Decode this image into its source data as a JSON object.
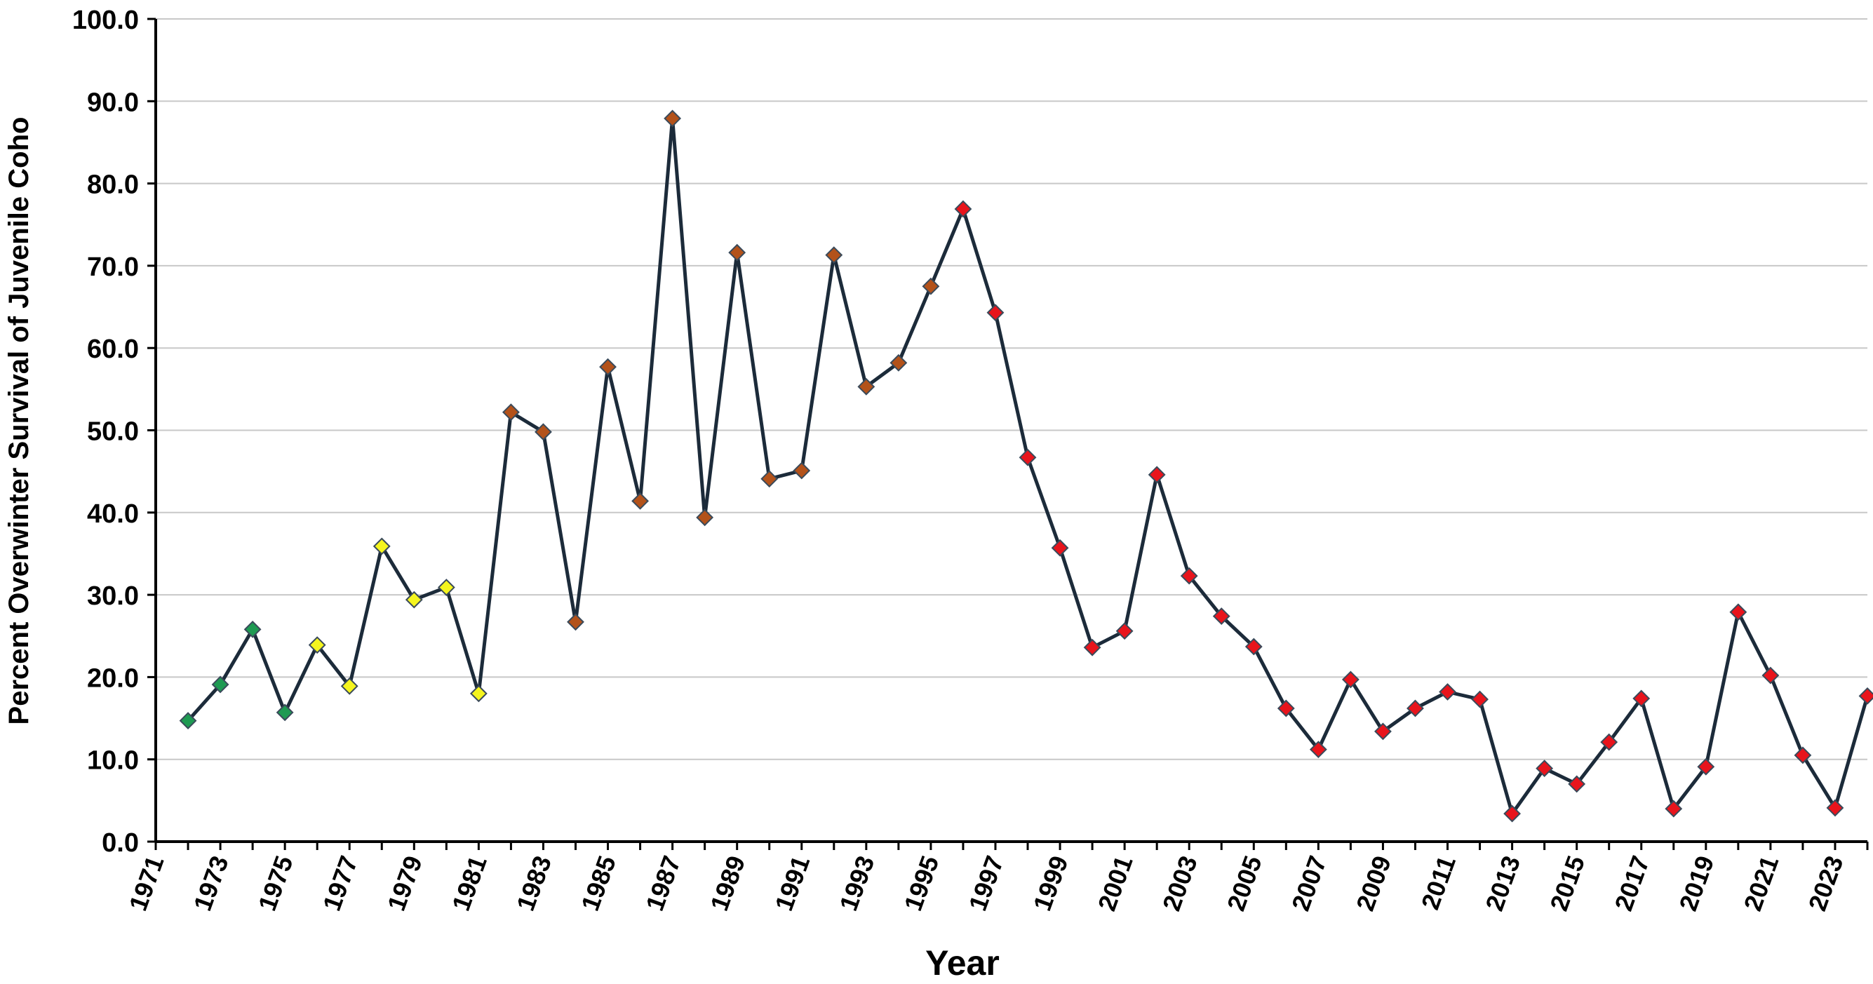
{
  "chart_data": {
    "type": "line",
    "title": "",
    "xlabel": "Year",
    "ylabel": "Percent Overwinter Survival of Juvenile Coho",
    "ylim": [
      0,
      100
    ],
    "xlim": [
      1971,
      2024
    ],
    "y_ticks": [
      "0.0",
      "10.0",
      "20.0",
      "30.0",
      "40.0",
      "50.0",
      "60.0",
      "70.0",
      "80.0",
      "90.0",
      "100.0"
    ],
    "x_ticks": [
      "1971",
      "1973",
      "1975",
      "1977",
      "1979",
      "1981",
      "1983",
      "1985",
      "1987",
      "1989",
      "1991",
      "1993",
      "1995",
      "1997",
      "1999",
      "2001",
      "2003",
      "2005",
      "2007",
      "2009",
      "2011",
      "2013",
      "2015",
      "2017",
      "2019",
      "2021",
      "2023"
    ],
    "grid": "horizontal",
    "line_color": "#1c2b3a",
    "marker": "diamond",
    "marker_colors": {
      "green": "#1e9a52",
      "yellow": "#f5f51e",
      "brown": "#b3521a",
      "red": "#e8141c"
    },
    "series": [
      {
        "points": [
          {
            "x": 1972,
            "y": 14.7,
            "color": "green"
          },
          {
            "x": 1973,
            "y": 19.1,
            "color": "green"
          },
          {
            "x": 1974,
            "y": 25.8,
            "color": "green"
          },
          {
            "x": 1975,
            "y": 15.7,
            "color": "green"
          },
          {
            "x": 1976,
            "y": 23.9,
            "color": "yellow"
          },
          {
            "x": 1977,
            "y": 18.9,
            "color": "yellow"
          },
          {
            "x": 1978,
            "y": 35.9,
            "color": "yellow"
          },
          {
            "x": 1979,
            "y": 29.4,
            "color": "yellow"
          },
          {
            "x": 1980,
            "y": 30.9,
            "color": "yellow"
          },
          {
            "x": 1981,
            "y": 18.0,
            "color": "yellow"
          },
          {
            "x": 1982,
            "y": 52.2,
            "color": "brown"
          },
          {
            "x": 1983,
            "y": 49.8,
            "color": "brown"
          },
          {
            "x": 1984,
            "y": 26.7,
            "color": "brown"
          },
          {
            "x": 1985,
            "y": 57.7,
            "color": "brown"
          },
          {
            "x": 1986,
            "y": 41.4,
            "color": "brown"
          },
          {
            "x": 1987,
            "y": 87.9,
            "color": "brown"
          },
          {
            "x": 1988,
            "y": 39.4,
            "color": "brown"
          },
          {
            "x": 1989,
            "y": 71.6,
            "color": "brown"
          },
          {
            "x": 1990,
            "y": 44.1,
            "color": "brown"
          },
          {
            "x": 1991,
            "y": 45.1,
            "color": "brown"
          },
          {
            "x": 1992,
            "y": 71.3,
            "color": "brown"
          },
          {
            "x": 1993,
            "y": 55.3,
            "color": "brown"
          },
          {
            "x": 1994,
            "y": 58.2,
            "color": "brown"
          },
          {
            "x": 1995,
            "y": 67.5,
            "color": "brown"
          },
          {
            "x": 1996,
            "y": 76.9,
            "color": "red"
          },
          {
            "x": 1997,
            "y": 64.3,
            "color": "red"
          },
          {
            "x": 1998,
            "y": 46.7,
            "color": "red"
          },
          {
            "x": 1999,
            "y": 35.7,
            "color": "red"
          },
          {
            "x": 2000,
            "y": 23.6,
            "color": "red"
          },
          {
            "x": 2001,
            "y": 25.6,
            "color": "red"
          },
          {
            "x": 2002,
            "y": 44.6,
            "color": "red"
          },
          {
            "x": 2003,
            "y": 32.3,
            "color": "red"
          },
          {
            "x": 2004,
            "y": 27.4,
            "color": "red"
          },
          {
            "x": 2005,
            "y": 23.7,
            "color": "red"
          },
          {
            "x": 2006,
            "y": 16.2,
            "color": "red"
          },
          {
            "x": 2007,
            "y": 11.2,
            "color": "red"
          },
          {
            "x": 2008,
            "y": 19.7,
            "color": "red"
          },
          {
            "x": 2009,
            "y": 13.4,
            "color": "red"
          },
          {
            "x": 2010,
            "y": 16.2,
            "color": "red"
          },
          {
            "x": 2011,
            "y": 18.2,
            "color": "red"
          },
          {
            "x": 2012,
            "y": 17.3,
            "color": "red"
          },
          {
            "x": 2013,
            "y": 3.4,
            "color": "red"
          },
          {
            "x": 2014,
            "y": 8.9,
            "color": "red"
          },
          {
            "x": 2015,
            "y": 7.0,
            "color": "red"
          },
          {
            "x": 2016,
            "y": 12.1,
            "color": "red"
          },
          {
            "x": 2017,
            "y": 17.4,
            "color": "red"
          },
          {
            "x": 2018,
            "y": 4.0,
            "color": "red"
          },
          {
            "x": 2019,
            "y": 9.1,
            "color": "red"
          },
          {
            "x": 2020,
            "y": 27.9,
            "color": "red"
          },
          {
            "x": 2021,
            "y": 20.2,
            "color": "red"
          },
          {
            "x": 2022,
            "y": 10.5,
            "color": "red"
          },
          {
            "x": 2023,
            "y": 4.1,
            "color": "red"
          },
          {
            "x": 2024,
            "y": 17.7,
            "color": "red"
          }
        ]
      }
    ]
  }
}
